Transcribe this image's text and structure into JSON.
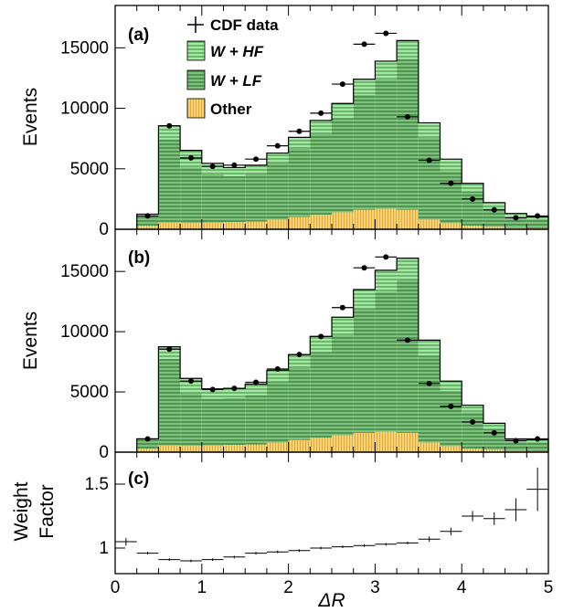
{
  "colors": {
    "hf_fill": "#a6e6a6",
    "hf_hatch": "#2e8b2e",
    "lf_fill": "#7fbf7f",
    "lf_hatch": "#1f6e1f",
    "other_fill": "#f5d27a",
    "other_hatch": "#e0a020",
    "data_marker": "#000000"
  },
  "x_axis": {
    "label": "ΔR",
    "ticks": [
      "0",
      "1",
      "2",
      "3",
      "4",
      "5"
    ]
  },
  "chart_data": [
    {
      "type": "bar",
      "panel_label": "(a)",
      "ylabel": "Events",
      "yticks": [
        "0",
        "5000",
        "10000",
        "15000"
      ],
      "xlim": [
        0,
        5
      ],
      "ylim": [
        0,
        18500
      ],
      "bin_edges": [
        0.25,
        0.5,
        0.75,
        1.0,
        1.25,
        1.5,
        1.75,
        2.0,
        2.25,
        2.5,
        2.75,
        3.0,
        3.25,
        3.5,
        3.75,
        4.0,
        4.25,
        4.5,
        4.75,
        5.0
      ],
      "legend": {
        "placement": "top-center",
        "entries": [
          {
            "label": "CDF data",
            "kind": "data"
          },
          {
            "label": "W + HF",
            "kind": "hf",
            "italic": true
          },
          {
            "label": "W + LF",
            "kind": "lf",
            "italic": true
          },
          {
            "label": "Other",
            "kind": "other",
            "italic": false
          }
        ]
      },
      "series": [
        {
          "key": "other",
          "values": [
            300,
            550,
            520,
            550,
            600,
            650,
            800,
            1000,
            1200,
            1400,
            1600,
            1700,
            1600,
            800,
            500,
            300,
            200,
            100,
            80
          ]
        },
        {
          "key": "lf",
          "values": [
            800,
            6900,
            4600,
            4000,
            3800,
            3950,
            4700,
            5700,
            6700,
            7800,
            9500,
            10700,
            12500,
            6800,
            4300,
            2800,
            1500,
            900,
            750
          ]
        },
        {
          "key": "hf",
          "values": [
            150,
            1100,
            1400,
            900,
            700,
            700,
            800,
            900,
            1100,
            1200,
            1300,
            1500,
            1500,
            1200,
            1000,
            700,
            500,
            300,
            200
          ]
        }
      ],
      "data": {
        "x": [
          0.375,
          0.625,
          0.875,
          1.125,
          1.375,
          1.625,
          1.875,
          2.125,
          2.375,
          2.625,
          2.875,
          3.125,
          3.375,
          3.625,
          3.875,
          4.125,
          4.375,
          4.625,
          4.875
        ],
        "y": [
          1100,
          8550,
          5900,
          5200,
          5300,
          5800,
          6900,
          8100,
          9600,
          12000,
          15300,
          16200,
          9300,
          5700,
          3800,
          2500,
          1600,
          950,
          1100
        ]
      }
    },
    {
      "type": "bar",
      "panel_label": "(b)",
      "ylabel": "Events",
      "yticks": [
        "0",
        "5000",
        "10000",
        "15000"
      ],
      "xlim": [
        0,
        5
      ],
      "ylim": [
        0,
        18500
      ],
      "bin_edges": [
        0.25,
        0.5,
        0.75,
        1.0,
        1.25,
        1.5,
        1.75,
        2.0,
        2.25,
        2.5,
        2.75,
        3.0,
        3.25,
        3.5,
        3.75,
        4.0,
        4.25,
        4.5,
        4.75,
        5.0
      ],
      "series": [
        {
          "key": "other",
          "values": [
            300,
            550,
            520,
            550,
            600,
            650,
            800,
            1000,
            1200,
            1400,
            1600,
            1700,
            1600,
            800,
            500,
            300,
            200,
            100,
            80
          ]
        },
        {
          "key": "lf",
          "values": [
            700,
            7200,
            4400,
            3900,
            3900,
            4100,
            5000,
            6000,
            7100,
            8300,
            10300,
            11600,
            12700,
            7200,
            4600,
            3000,
            1700,
            750,
            750
          ]
        },
        {
          "key": "hf",
          "values": [
            100,
            1000,
            1200,
            800,
            800,
            900,
            1000,
            1100,
            1300,
            1500,
            1600,
            1800,
            1800,
            1300,
            800,
            600,
            500,
            250,
            220
          ]
        }
      ],
      "data": {
        "x": [
          0.375,
          0.625,
          0.875,
          1.125,
          1.375,
          1.625,
          1.875,
          2.125,
          2.375,
          2.625,
          2.875,
          3.125,
          3.375,
          3.625,
          3.875,
          4.125,
          4.375,
          4.625,
          4.875
        ],
        "y": [
          1100,
          8550,
          5900,
          5200,
          5300,
          5800,
          6900,
          8100,
          9600,
          12000,
          15300,
          16200,
          9300,
          5700,
          3800,
          2500,
          1600,
          950,
          1100
        ]
      }
    },
    {
      "type": "scatter",
      "panel_label": "(c)",
      "ylabel_lines": [
        "Weight",
        "Factor"
      ],
      "yticks": [
        "1",
        "1.5"
      ],
      "xlim": [
        0,
        5
      ],
      "ylim": [
        0.8,
        1.75
      ],
      "points": {
        "x": [
          0.125,
          0.375,
          0.625,
          0.875,
          1.125,
          1.375,
          1.625,
          1.875,
          2.125,
          2.375,
          2.625,
          2.875,
          3.125,
          3.375,
          3.625,
          3.875,
          4.125,
          4.375,
          4.625,
          4.875
        ],
        "y": [
          1.05,
          0.96,
          0.91,
          0.9,
          0.91,
          0.93,
          0.96,
          0.97,
          0.98,
          1.0,
          1.01,
          1.02,
          1.03,
          1.04,
          1.07,
          1.13,
          1.25,
          1.23,
          1.3,
          1.46
        ],
        "err": [
          0.03,
          0.01,
          0.01,
          0.01,
          0.01,
          0.01,
          0.01,
          0.01,
          0.01,
          0.01,
          0.01,
          0.01,
          0.01,
          0.01,
          0.02,
          0.03,
          0.04,
          0.05,
          0.09,
          0.17
        ]
      }
    }
  ]
}
